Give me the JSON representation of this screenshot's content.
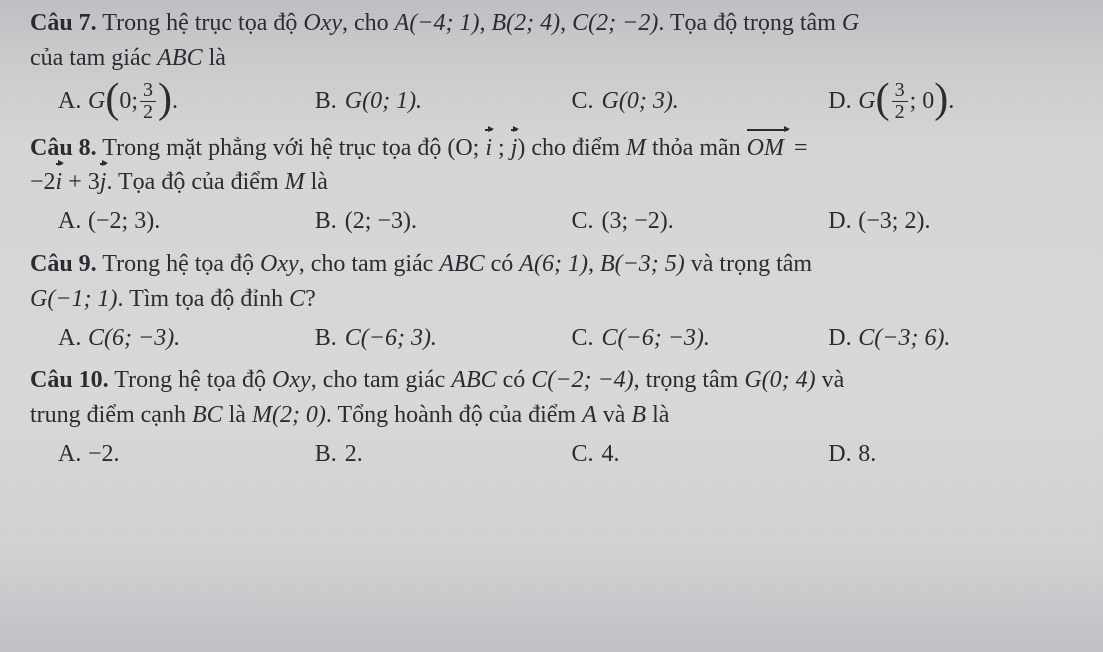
{
  "text_color": "#2b2c2f",
  "background_gradient": [
    "#bdbfc3",
    "#c9cacb",
    "#d5d5d6",
    "#d9d8d9",
    "#d1d1d3",
    "#c0c1c4"
  ],
  "font_family": "Times New Roman, serif",
  "font_size_pt": 18,
  "questions": [
    {
      "number": "Câu 7.",
      "stem_parts": {
        "pre": "Trong hệ trục tọa độ ",
        "oxy": "Oxy",
        "mid1": ", cho ",
        "A": "A(−4; 1)",
        "B": "B(2; 4)",
        "C": "C(2; −2)",
        "mid2": ". Tọa độ trọng tâm ",
        "G": "G",
        "tail": "của tam giác ",
        "ABC": "ABC",
        "la": " là"
      },
      "options": {
        "A": {
          "label": "A.",
          "G": "G",
          "frac_num": "3",
          "frac_den": "2",
          "inner_left": "0; "
        },
        "B": {
          "label": "B.",
          "text": "G(0; 1)."
        },
        "C": {
          "label": "C.",
          "text": "G(0; 3)."
        },
        "D": {
          "label": "D.",
          "G": "G",
          "frac_num": "3",
          "frac_den": "2",
          "inner_right": "; 0"
        }
      }
    },
    {
      "number": "Câu 8.",
      "stem_parts": {
        "pre": "Trong mặt phẳng với hệ trục tọa độ ",
        "open": "(O; ",
        "i": "i",
        "semi": " ; ",
        "j": "j",
        "close": ") ",
        "mid": "cho điểm ",
        "M": "M",
        "thoa": " thỏa mãn ",
        "OM": "OM",
        "eq": " = ",
        "expr_a": "−2",
        "iv": "i",
        "plus": " + 3",
        "jv": "j",
        "tail": ". Tọa độ của điểm ",
        "M2": "M",
        "la": " là"
      },
      "options": {
        "A": {
          "label": "A.",
          "text": "(−2; 3)."
        },
        "B": {
          "label": "B.",
          "text": "(2; −3)."
        },
        "C": {
          "label": "C.",
          "text": "(3; −2)."
        },
        "D": {
          "label": "D.",
          "text": "(−3; 2)."
        }
      }
    },
    {
      "number": "Câu 9.",
      "stem_parts": {
        "pre": "Trong hệ tọa độ ",
        "oxy": "Oxy",
        "mid1": ", cho tam giác ",
        "ABC": "ABC",
        "mid2": " có ",
        "A": "A(6; 1)",
        "B": "B(−3; 5)",
        "va": " và trọng tâm",
        "G": "G(−1; 1)",
        "tail": ". Tìm tọa độ đỉnh ",
        "C": "C",
        "q": "?"
      },
      "options": {
        "A": {
          "label": "A.",
          "text": "C(6; −3)."
        },
        "B": {
          "label": "B.",
          "text": "C(−6; 3)."
        },
        "C": {
          "label": "C.",
          "text": "C(−6; −3)."
        },
        "D": {
          "label": "D.",
          "text": "C(−3; 6)."
        }
      }
    },
    {
      "number": "Câu 10.",
      "stem_parts": {
        "pre": "Trong hệ tọa độ ",
        "oxy": "Oxy",
        "mid1": ", cho tam giác ",
        "ABC": "ABC",
        "mid2": " có ",
        "C": "C(−2; −4)",
        "mid3": ", trọng tâm ",
        "G": "G(0; 4)",
        "va": " và",
        "line2a": "trung điểm cạnh ",
        "BC": "BC",
        "la": " là ",
        "M": "M(2; 0)",
        "tail": ". Tổng hoành độ của điểm ",
        "Av": "A",
        "va2": " và ",
        "Bv": "B",
        "la2": " là"
      },
      "options": {
        "A": {
          "label": "A.",
          "text": "−2."
        },
        "B": {
          "label": "B.",
          "text": "2."
        },
        "C": {
          "label": "C.",
          "text": "4."
        },
        "D": {
          "label": "D.",
          "text": "8."
        }
      }
    }
  ]
}
